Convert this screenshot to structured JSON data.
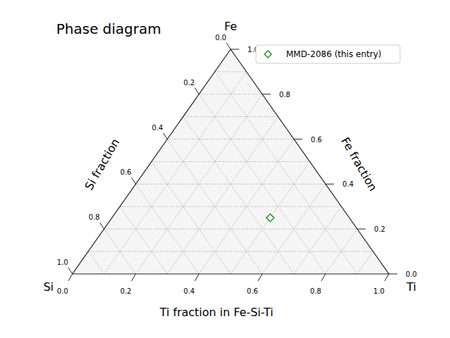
{
  "chart_data": {
    "type": "ternary",
    "title": "Phase diagram",
    "corners": {
      "top": "Fe",
      "left": "Si",
      "right": "Ti"
    },
    "bottom_label": "Ti fraction in Fe-Si-Ti",
    "left_label": "Si fraction",
    "right_label": "Fe fraction",
    "ti_ticks": [
      {
        "value": 0,
        "label": "0.0"
      },
      0.2,
      0.4,
      0.6,
      0.8,
      {
        "value": 1,
        "label": "1.0"
      }
    ],
    "si_ticks": [
      {
        "value": 0,
        "label": "0.0"
      },
      0.2,
      0.4,
      0.6,
      0.8,
      {
        "value": 1,
        "label": "1.0"
      }
    ],
    "fe_ticks": [
      {
        "value": 0,
        "label": "0.0"
      },
      0.2,
      0.4,
      0.6,
      0.8,
      {
        "value": 1,
        "label": "1.0"
      }
    ],
    "grid": true,
    "legend": "upper right",
    "series": [
      {
        "name": "MMD-2086 (this entry)",
        "color": "green",
        "marker": "diamond",
        "Fe": [
          0.25
        ],
        "Si": [
          0.25
        ],
        "Ti": [
          0.5
        ]
      }
    ]
  }
}
